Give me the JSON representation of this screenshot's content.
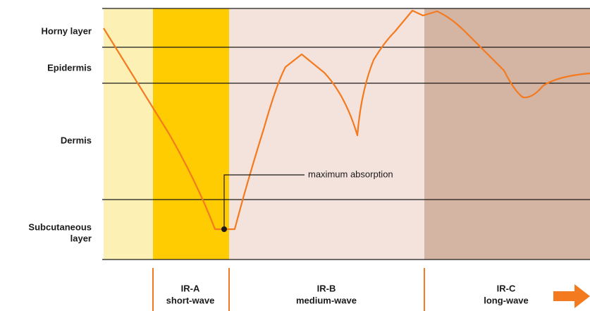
{
  "layers": [
    "Horny layer",
    "Epidermis",
    "Dermis",
    "Subcutaneous",
    "layer"
  ],
  "annotation": "maximum absorption",
  "bands": [
    {
      "name": "IR-A",
      "kind": "short-wave"
    },
    {
      "name": "IR-B",
      "kind": "medium-wave"
    },
    {
      "name": "IR-C",
      "kind": "long-wave"
    }
  ]
}
